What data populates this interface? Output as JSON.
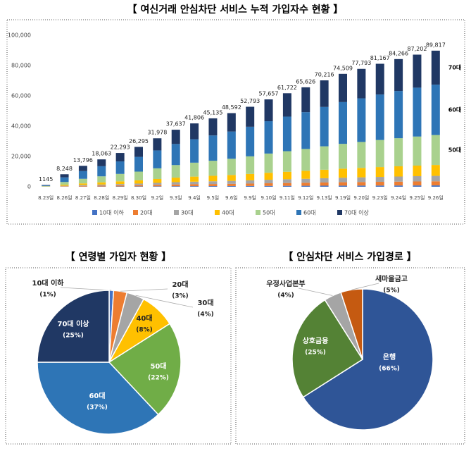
{
  "chart_data": [
    {
      "type": "stacked_bar",
      "title": "【 여신거래 안심차단 서비스 누적 가입자수 현황 】",
      "categories": [
        "8.23일",
        "8.26일",
        "8.27일",
        "8.28일",
        "8.29일",
        "8.30일",
        "9.2일",
        "9.3일",
        "9.4일",
        "9.5일",
        "9.6일",
        "9.9일",
        "9.10일",
        "9.11일",
        "9.12일",
        "9.13일",
        "9.19일",
        "9.20일",
        "9.23일",
        "9.24일",
        "9.25일",
        "9.26일"
      ],
      "series": [
        {
          "name": "10대 이하",
          "color": "#4472c4",
          "values": [
            11,
            82,
            138,
            181,
            223,
            263,
            320,
            376,
            418,
            451,
            486,
            528,
            577,
            617,
            656,
            702,
            745,
            778,
            812,
            843,
            872,
            898
          ]
        },
        {
          "name": "20대",
          "color": "#ed7d31",
          "values": [
            34,
            247,
            414,
            542,
            669,
            789,
            959,
            1129,
            1254,
            1354,
            1458,
            1584,
            1730,
            1852,
            1969,
            2106,
            2235,
            2334,
            2435,
            2528,
            2616,
            2695
          ]
        },
        {
          "name": "30대",
          "color": "#a5a5a5",
          "values": [
            46,
            330,
            552,
            723,
            892,
            1052,
            1279,
            1505,
            1672,
            1805,
            1944,
            2112,
            2306,
            2469,
            2625,
            2809,
            2980,
            3112,
            3247,
            3371,
            3488,
            3593
          ]
        },
        {
          "name": "40대",
          "color": "#ffc000",
          "values": [
            92,
            660,
            1104,
            1445,
            1783,
            2104,
            2558,
            3011,
            3344,
            3611,
            3887,
            4223,
            4613,
            4938,
            5250,
            5617,
            5961,
            6223,
            6493,
            6741,
            6976,
            7185
          ]
        },
        {
          "name": "50대",
          "color": "#a9d18e",
          "values": [
            252,
            1815,
            3035,
            3974,
            4904,
            5785,
            7035,
            8280,
            9197,
            9930,
            10690,
            11614,
            12685,
            13579,
            14438,
            15448,
            16392,
            17114,
            17857,
            18539,
            19184,
            19760
          ]
        },
        {
          "name": "60대",
          "color": "#2e75b6",
          "values": [
            424,
            3052,
            5105,
            6683,
            8248,
            9729,
            11832,
            13926,
            15468,
            16700,
            17979,
            19533,
            21333,
            22837,
            24282,
            25980,
            27568,
            28783,
            30032,
            31178,
            32265,
            33232
          ]
        },
        {
          "name": "70대 이상",
          "color": "#203864",
          "values": [
            286,
            2062,
            3449,
            4516,
            5573,
            6574,
            7995,
            9409,
            10452,
            11284,
            12148,
            13198,
            14414,
            15431,
            16407,
            17554,
            18627,
            19448,
            20292,
            21067,
            21801,
            22454
          ]
        }
      ],
      "total_labels": [
        "1145",
        "8,248",
        "13,796",
        "18,063",
        "22,293",
        "26,295",
        "31,978",
        "37,637",
        "41,806",
        "45,135",
        "48,592",
        "52,793",
        "57,657",
        "61,722",
        "65,626",
        "70,216",
        "74,509",
        "77,793",
        "81,167",
        "84,266",
        "87,202",
        "89,817"
      ],
      "annotations": [
        "70대",
        "60대",
        "50대"
      ],
      "ylim": [
        0,
        100000
      ],
      "yticks": [
        0,
        {
          "value": 20000,
          "label": "20,000"
        },
        {
          "value": 40000,
          "label": "40,000"
        },
        {
          "value": 60000,
          "label": "60,000"
        },
        {
          "value": 80000,
          "label": "80,000"
        },
        {
          "value": 100000,
          "label": "100,000"
        }
      ],
      "legend": "bottom"
    },
    {
      "type": "pie",
      "title": "【 연령별 가입자 현황 】",
      "categories": [
        "10대 이하",
        "20대",
        "30대",
        "40대",
        "50대",
        "60대",
        "70대 이상"
      ],
      "values": [
        1,
        3,
        4,
        8,
        22,
        37,
        25
      ],
      "value_labels": [
        "(1%)",
        "(3%)",
        "(4%)",
        "(8%)",
        "(22%)",
        "(37%)",
        "(25%)"
      ],
      "colors": [
        "#4472c4",
        "#ed7d31",
        "#a5a5a5",
        "#ffc000",
        "#70ad47",
        "#2e75b6",
        "#203864"
      ]
    },
    {
      "type": "pie",
      "title": "【 안심차단 서비스 가입경로 】",
      "categories": [
        "은행",
        "상호금융",
        "우정사업본부",
        "새마을금고"
      ],
      "values": [
        66,
        25,
        4,
        5
      ],
      "value_labels": [
        "(66%)",
        "(25%)",
        "(4%)",
        "(5%)"
      ],
      "colors": [
        "#2f5597",
        "#548235",
        "#a5a5a5",
        "#c55a11"
      ]
    }
  ]
}
